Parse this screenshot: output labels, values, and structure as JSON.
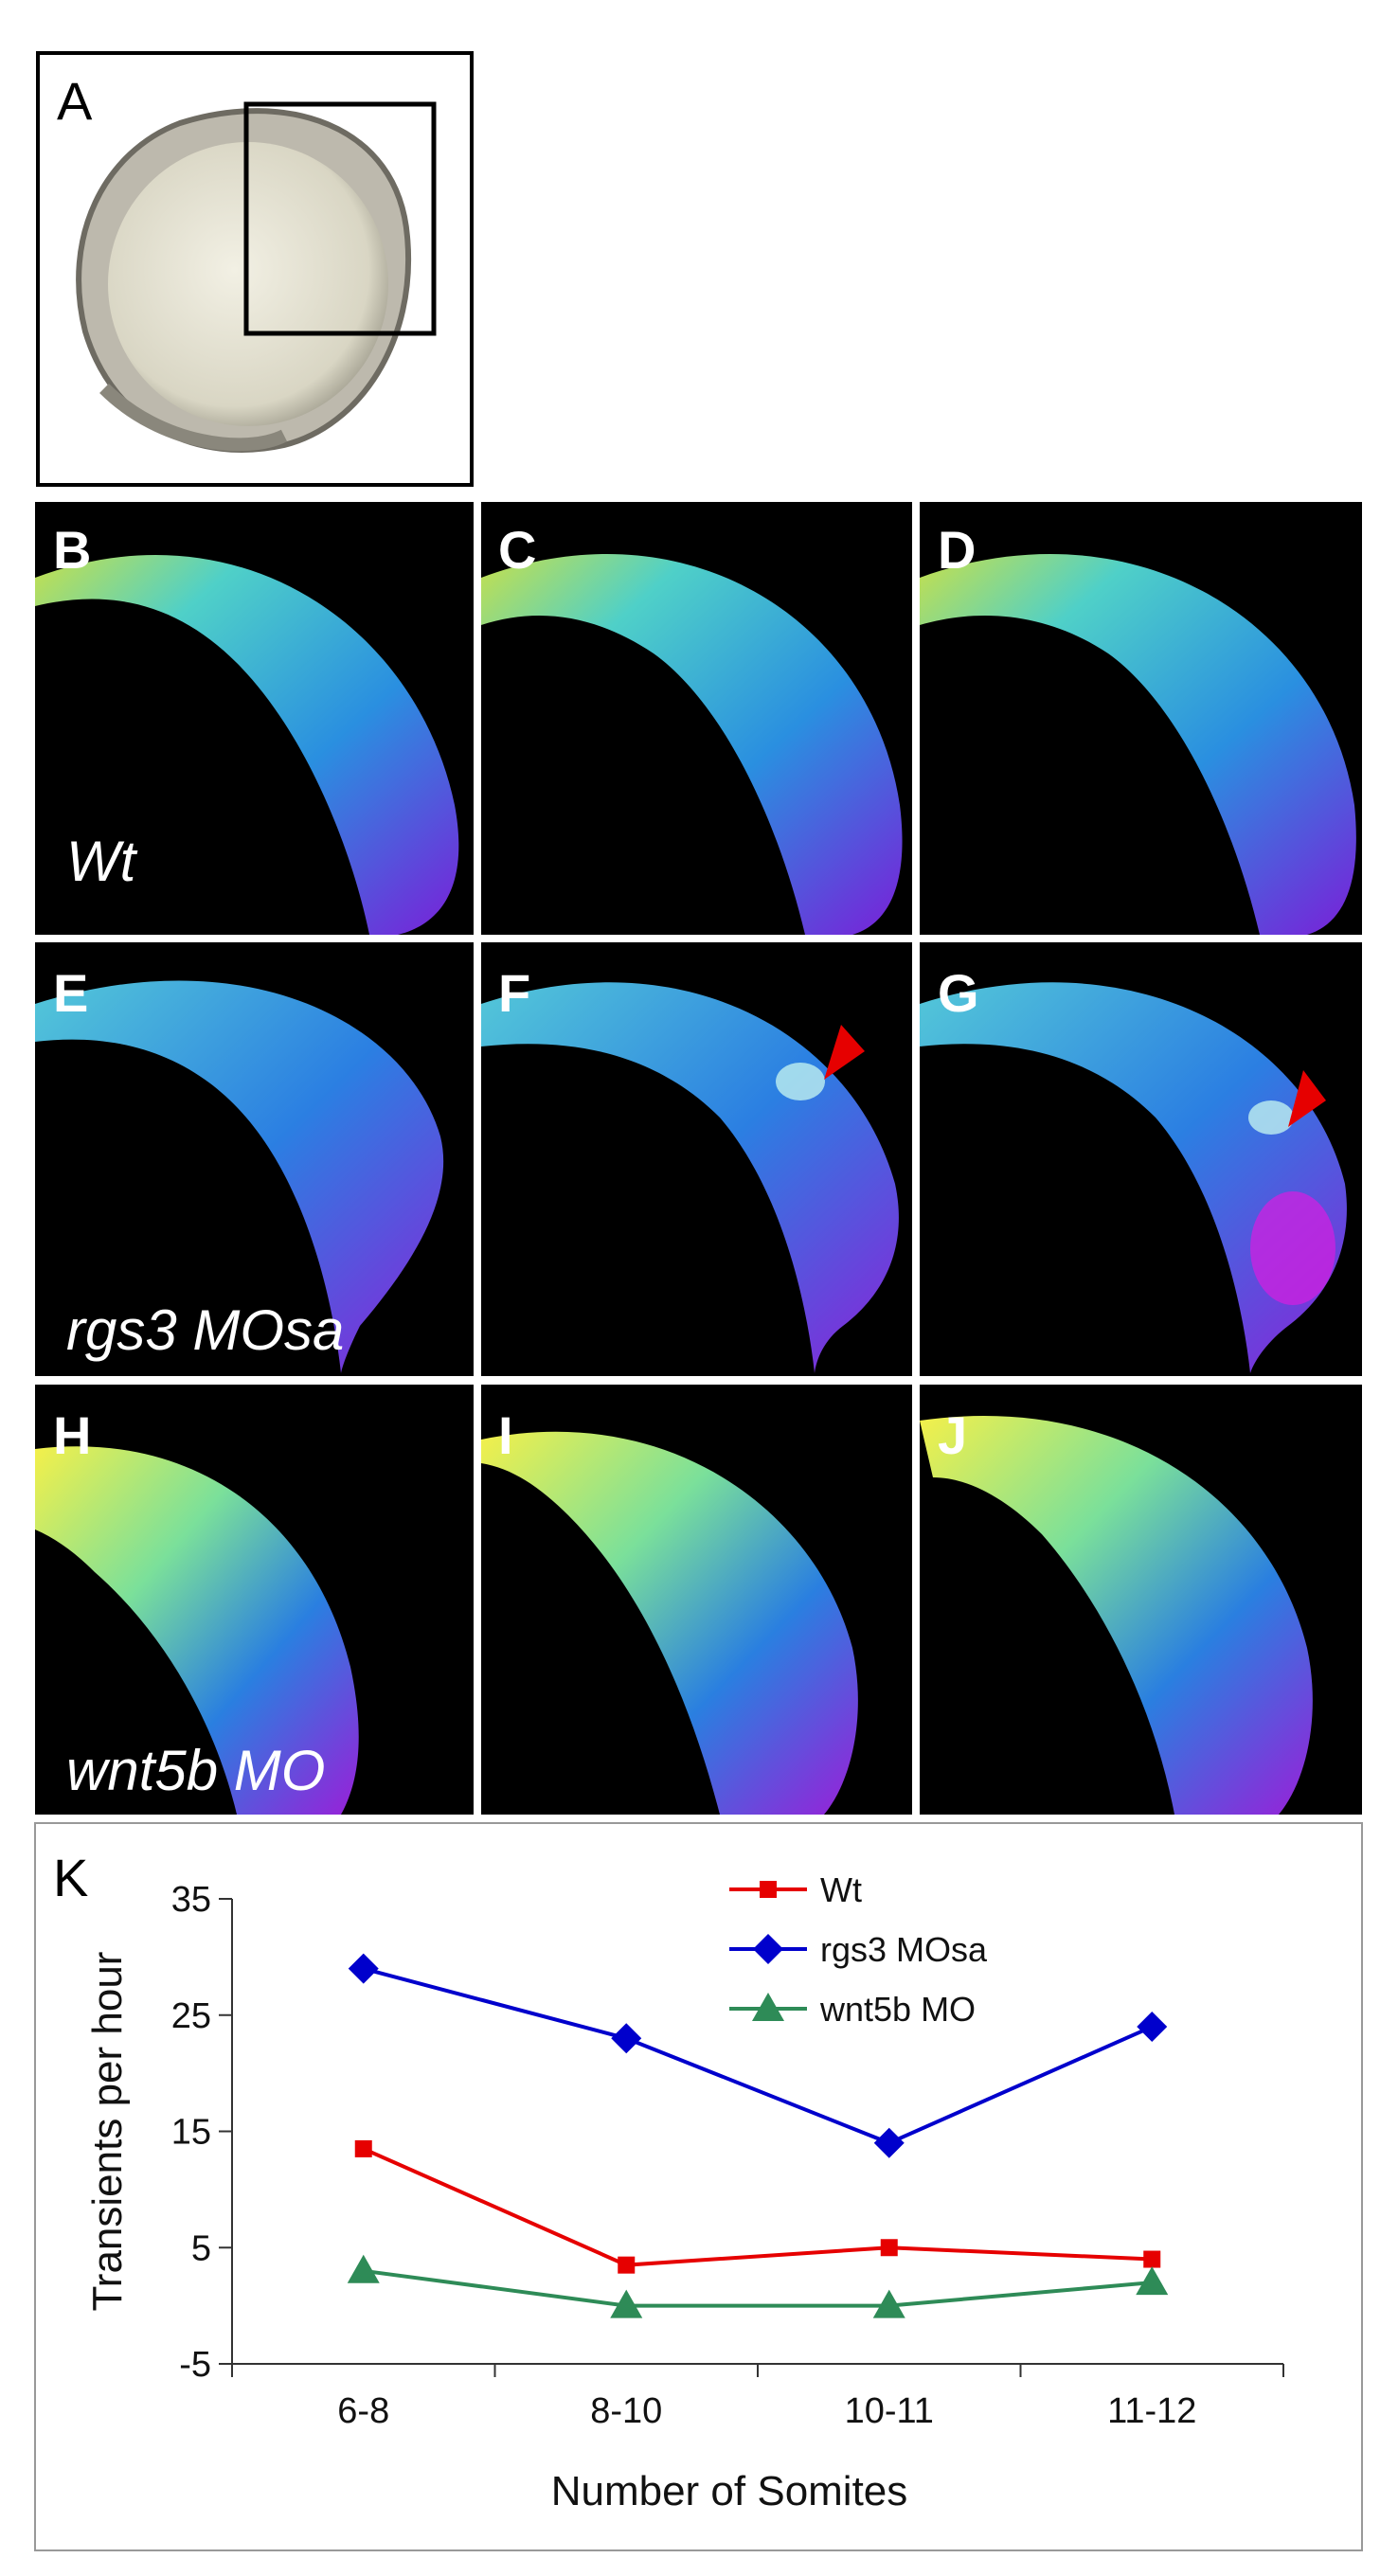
{
  "panels": {
    "A": "A",
    "B": "B",
    "C": "C",
    "D": "D",
    "E": "E",
    "F": "F",
    "G": "G",
    "H": "H",
    "I": "I",
    "J": "J",
    "K": "K"
  },
  "conditions": {
    "wt": "Wt",
    "rgs3": "rgs3 MOsa",
    "wnt5b": "wnt5b MO"
  },
  "colors": {
    "wt": "#e60000",
    "rgs3": "#0000cc",
    "wnt5b": "#2e8b57",
    "arrow": "#e60000"
  },
  "chart_data": {
    "type": "line",
    "categories": [
      "6-8",
      "8-10",
      "10-11",
      "11-12"
    ],
    "xlabel": "Number of Somites",
    "ylabel": "Transients per hour",
    "ylim": [
      -5,
      35
    ],
    "yticks": [
      -5,
      5,
      15,
      25,
      35
    ],
    "grid": false,
    "legend_position": "top-right",
    "series": [
      {
        "name": "Wt",
        "marker": "square",
        "color": "#e60000",
        "values": [
          13.5,
          3.5,
          5.0,
          4.0
        ]
      },
      {
        "name": "rgs3 MOsa",
        "marker": "diamond",
        "color": "#0000cc",
        "values": [
          29.0,
          23.0,
          14.0,
          24.0
        ]
      },
      {
        "name": "wnt5b MO",
        "marker": "triangle",
        "color": "#2e8b57",
        "values": [
          3.0,
          0.0,
          0.0,
          2.0
        ]
      }
    ]
  }
}
